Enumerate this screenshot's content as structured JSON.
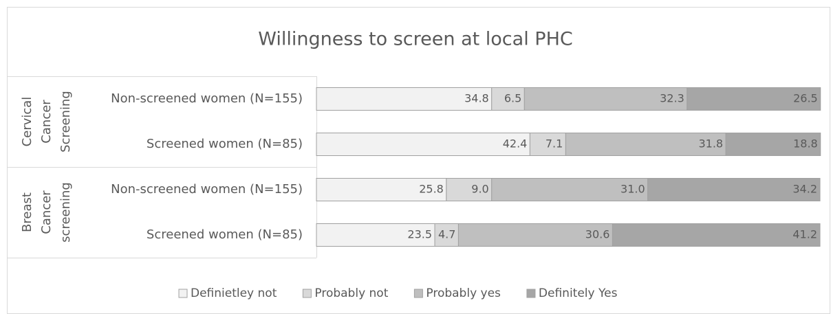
{
  "chart_data": {
    "type": "stacked-bar-horizontal",
    "title": "Willingness to screen at local PHC",
    "groups": [
      "Cervical Cancer Screening",
      "Breast Cancer screening"
    ],
    "categories": [
      "Non-screened women (N=155)",
      "Screened women (N=85)",
      "Non-screened women (N=155)",
      "Screened women (N=85)"
    ],
    "xlim": [
      0,
      100
    ],
    "series": [
      {
        "name": "Definietley not",
        "color": "#f2f2f2",
        "values": [
          34.8,
          42.4,
          25.8,
          23.5
        ],
        "value_labels": [
          "34.8",
          "42.4",
          "25.8",
          "23.5"
        ]
      },
      {
        "name": "Probably not",
        "color": "#d9d9d9",
        "values": [
          6.5,
          7.1,
          9.0,
          4.7
        ],
        "value_labels": [
          "6.5",
          "7.1",
          "9.0",
          "4.7"
        ]
      },
      {
        "name": "Probably yes",
        "color": "#bfbfbf",
        "values": [
          32.3,
          31.8,
          31.0,
          30.6
        ],
        "value_labels": [
          "32.3",
          "31.8",
          "31.0",
          "30.6"
        ]
      },
      {
        "name": "Definitely Yes",
        "color": "#a6a6a6",
        "values": [
          26.5,
          18.8,
          34.2,
          41.2
        ],
        "value_labels": [
          "26.5",
          "18.8",
          "34.2",
          "41.2"
        ]
      }
    ],
    "legend": "bottom"
  }
}
